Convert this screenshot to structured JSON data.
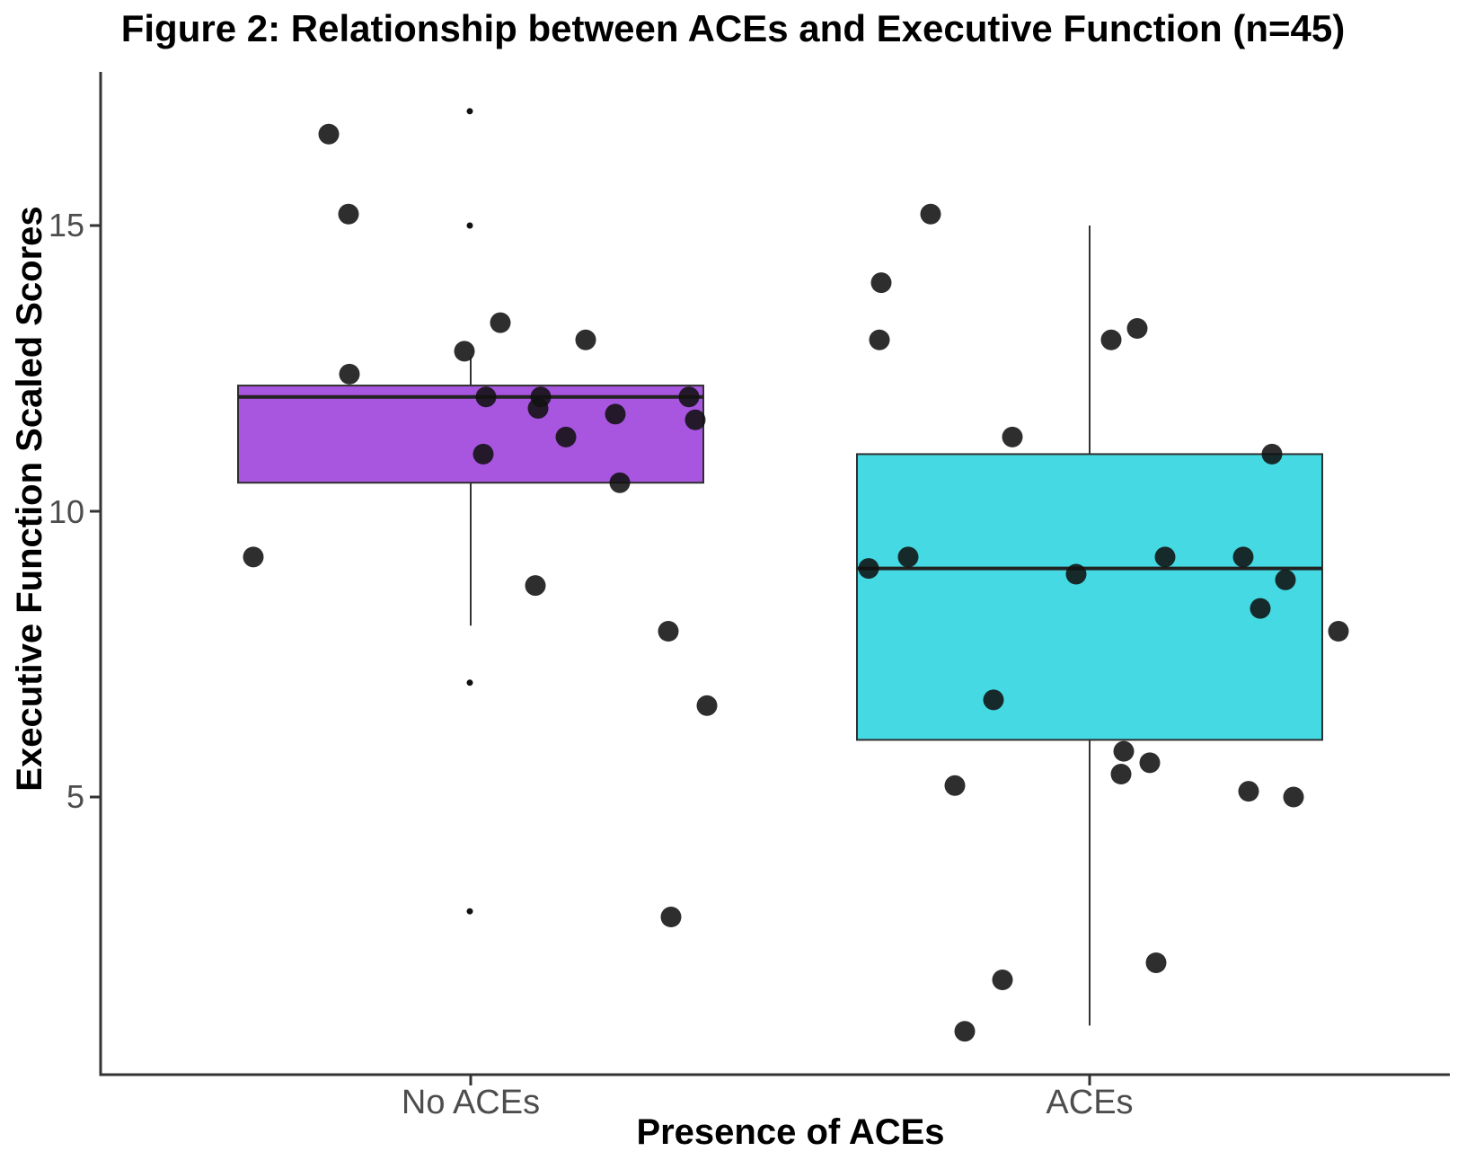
{
  "title": "Figure 2: Relationship between ACEs and Executive Function (n=45)",
  "y_axis": {
    "label": "Executive Function Scaled Scores",
    "tick_labels": [
      "5",
      "10",
      "15"
    ]
  },
  "x_axis": {
    "label": "Presence of ACEs",
    "categories": [
      "No ACEs",
      "ACEs"
    ]
  },
  "colors": {
    "no_aces_fill": "#A855E0",
    "aces_fill": "#45DAE3",
    "box_stroke": "#2f2f2f",
    "median_stroke": "#222222",
    "whisker_stroke": "#333333",
    "axis_stroke": "#333333",
    "point_fill": "#111111",
    "tick_label": "#4d4d4d"
  },
  "chart_data": {
    "type": "boxplot_with_jitter",
    "title": "Figure 2: Relationship between ACEs and Executive Function (n=45)",
    "xlabel": "Presence of ACEs",
    "ylabel": "Executive Function Scaled Scores",
    "ylim": [
      0.15,
      17.6
    ],
    "y_ticks": [
      5,
      10,
      15
    ],
    "grid": "off",
    "legend": "none",
    "n_total": 45,
    "groups": [
      {
        "category": "No ACEs",
        "fill_color": "#A855E0",
        "box": {
          "q1": 10.5,
          "median": 12.0,
          "q3": 12.2,
          "whisker_low": 8.0,
          "whisker_high": 12.7
        },
        "boxplot_outliers": [
          17.0,
          15.0,
          7.0,
          3.0
        ],
        "jitter_points": [
          {
            "value": 16.6,
            "jx": 366
          },
          {
            "value": 15.2,
            "jx": 388
          },
          {
            "value": 12.4,
            "jx": 389
          },
          {
            "value": 13.3,
            "jx": 557
          },
          {
            "value": 12.8,
            "jx": 517
          },
          {
            "value": 13.0,
            "jx": 652
          },
          {
            "value": 12.0,
            "jx": 541
          },
          {
            "value": 12.0,
            "jx": 602
          },
          {
            "value": 11.8,
            "jx": 599
          },
          {
            "value": 11.3,
            "jx": 630
          },
          {
            "value": 11.0,
            "jx": 538
          },
          {
            "value": 11.7,
            "jx": 685
          },
          {
            "value": 12.0,
            "jx": 767
          },
          {
            "value": 11.6,
            "jx": 774
          },
          {
            "value": 10.5,
            "jx": 690
          },
          {
            "value": 9.2,
            "jx": 282
          },
          {
            "value": 8.7,
            "jx": 596
          },
          {
            "value": 7.9,
            "jx": 744
          },
          {
            "value": 6.6,
            "jx": 787
          },
          {
            "value": 2.9,
            "jx": 747
          }
        ]
      },
      {
        "category": "ACEs",
        "fill_color": "#45DAE3",
        "box": {
          "q1": 6.0,
          "median": 9.0,
          "q3": 11.0,
          "whisker_low": 1.0,
          "whisker_high": 15.0
        },
        "boxplot_outliers": [],
        "jitter_points": [
          {
            "value": 15.2,
            "jx": 1036
          },
          {
            "value": 14.0,
            "jx": 981
          },
          {
            "value": 13.0,
            "jx": 979
          },
          {
            "value": 13.0,
            "jx": 1237
          },
          {
            "value": 13.2,
            "jx": 1266
          },
          {
            "value": 11.3,
            "jx": 1127
          },
          {
            "value": 11.0,
            "jx": 1416
          },
          {
            "value": 9.0,
            "jx": 967
          },
          {
            "value": 9.2,
            "jx": 1011
          },
          {
            "value": 8.9,
            "jx": 1198
          },
          {
            "value": 9.2,
            "jx": 1297
          },
          {
            "value": 9.2,
            "jx": 1384
          },
          {
            "value": 8.8,
            "jx": 1431
          },
          {
            "value": 8.3,
            "jx": 1403
          },
          {
            "value": 7.9,
            "jx": 1490
          },
          {
            "value": 6.7,
            "jx": 1106
          },
          {
            "value": 5.8,
            "jx": 1251
          },
          {
            "value": 5.6,
            "jx": 1280
          },
          {
            "value": 5.4,
            "jx": 1248
          },
          {
            "value": 5.1,
            "jx": 1390
          },
          {
            "value": 5.0,
            "jx": 1440
          },
          {
            "value": 5.2,
            "jx": 1063
          },
          {
            "value": 2.1,
            "jx": 1287
          },
          {
            "value": 1.8,
            "jx": 1116
          },
          {
            "value": 0.9,
            "jx": 1074
          }
        ]
      }
    ]
  }
}
